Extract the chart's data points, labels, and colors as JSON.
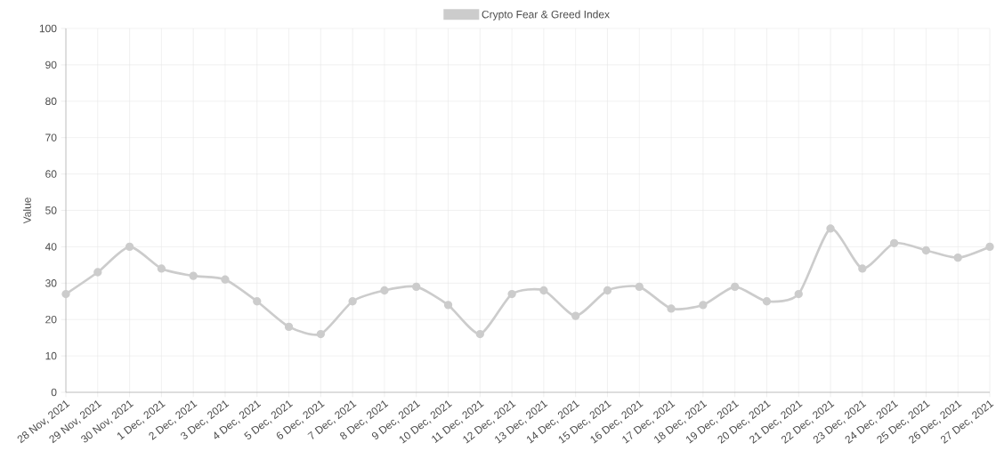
{
  "chart_data": {
    "type": "line",
    "ylabel": "Value",
    "categories": [
      "28 Nov, 2021",
      "29 Nov, 2021",
      "30 Nov, 2021",
      "1 Dec, 2021",
      "2 Dec, 2021",
      "3 Dec, 2021",
      "4 Dec, 2021",
      "5 Dec, 2021",
      "6 Dec, 2021",
      "7 Dec, 2021",
      "8 Dec, 2021",
      "9 Dec, 2021",
      "10 Dec, 2021",
      "11 Dec, 2021",
      "12 Dec, 2021",
      "13 Dec, 2021",
      "14 Dec, 2021",
      "15 Dec, 2021",
      "16 Dec, 2021",
      "17 Dec, 2021",
      "18 Dec, 2021",
      "19 Dec, 2021",
      "20 Dec, 2021",
      "21 Dec, 2021",
      "22 Dec, 2021",
      "23 Dec, 2021",
      "24 Dec, 2021",
      "25 Dec, 2021",
      "26 Dec, 2021",
      "27 Dec, 2021"
    ],
    "series": [
      {
        "name": "Crypto Fear & Greed Index",
        "color": "#cccccc",
        "values": [
          27,
          33,
          40,
          34,
          32,
          31,
          25,
          18,
          16,
          25,
          28,
          29,
          24,
          16,
          27,
          28,
          21,
          28,
          29,
          23,
          24,
          29,
          25,
          27,
          45,
          34,
          41,
          39,
          37,
          40
        ]
      }
    ],
    "ylim": [
      0,
      100
    ],
    "yticks": [
      0,
      10,
      20,
      30,
      40,
      50,
      60,
      70,
      80,
      90,
      100
    ],
    "grid": true,
    "legend": "top",
    "marker": "circle",
    "line_style": "solid"
  }
}
